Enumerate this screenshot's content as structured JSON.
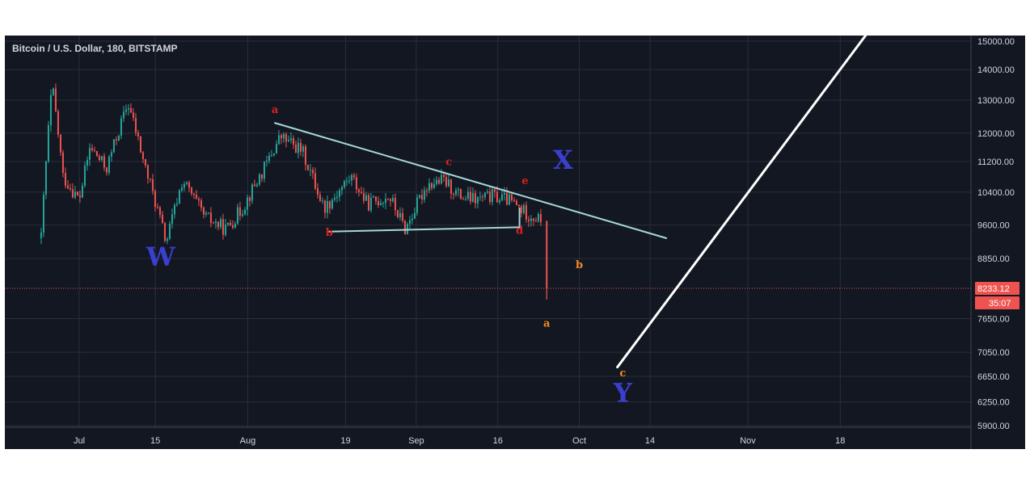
{
  "chart_data": {
    "type": "candlestick",
    "title": "Bitcoin / U.S. Dollar, 180, BITSTAMP",
    "y_ticks": [
      5900,
      6250,
      6650,
      7050,
      7650,
      8233.12,
      8850,
      9600,
      10400,
      11200,
      12000,
      13000,
      14000,
      15000
    ],
    "y_tick_labels": [
      "5900.00",
      "6250.00",
      "6650.00",
      "7050.00",
      "7650.00",
      "8233.12",
      "8850.00",
      "9600.00",
      "10400.00",
      "11200.00",
      "12000.00",
      "13000.00",
      "14000.00",
      "15000.00"
    ],
    "x_ticks": [
      "Jul",
      "15",
      "Aug",
      "19",
      "Sep",
      "16",
      "Oct",
      "14",
      "Nov",
      "18"
    ],
    "last_price": "8233.12",
    "countdown": "35:07",
    "price_path": [
      {
        "date": "2019-06-24",
        "price": 9300
      },
      {
        "date": "2019-06-26",
        "price": 13500
      },
      {
        "date": "2019-06-28",
        "price": 10800
      },
      {
        "date": "2019-07-01",
        "price": 10200
      },
      {
        "date": "2019-07-03",
        "price": 11600
      },
      {
        "date": "2019-07-06",
        "price": 11000
      },
      {
        "date": "2019-07-10",
        "price": 12900
      },
      {
        "date": "2019-07-13",
        "price": 11100
      },
      {
        "date": "2019-07-17",
        "price": 9200
      },
      {
        "date": "2019-07-20",
        "price": 10700
      },
      {
        "date": "2019-07-24",
        "price": 9800
      },
      {
        "date": "2019-07-28",
        "price": 9500
      },
      {
        "date": "2019-07-31",
        "price": 10000
      },
      {
        "date": "2019-08-04",
        "price": 11000
      },
      {
        "date": "2019-08-07",
        "price": 11900
      },
      {
        "date": "2019-08-11",
        "price": 11500
      },
      {
        "date": "2019-08-15",
        "price": 10000
      },
      {
        "date": "2019-08-17",
        "price": 10300
      },
      {
        "date": "2019-08-20",
        "price": 10800
      },
      {
        "date": "2019-08-23",
        "price": 10100
      },
      {
        "date": "2019-08-27",
        "price": 10300
      },
      {
        "date": "2019-08-30",
        "price": 9500
      },
      {
        "date": "2019-09-03",
        "price": 10600
      },
      {
        "date": "2019-09-06",
        "price": 10700
      },
      {
        "date": "2019-09-09",
        "price": 10300
      },
      {
        "date": "2019-09-12",
        "price": 10200
      },
      {
        "date": "2019-09-15",
        "price": 10300
      },
      {
        "date": "2019-09-18",
        "price": 10200
      },
      {
        "date": "2019-09-21",
        "price": 9900
      },
      {
        "date": "2019-09-24",
        "price": 9700
      },
      {
        "date": "2019-09-25",
        "price": 8233.12
      }
    ],
    "trendlines": [
      {
        "from": {
          "date": "2019-08-06",
          "price": 12300
        },
        "to": {
          "date": "2019-10-17",
          "price": 9300
        },
        "color": "#a4d8d8"
      },
      {
        "from": {
          "date": "2019-08-16",
          "price": 9450
        },
        "to": {
          "date": "2019-09-20",
          "price": 9550
        },
        "color": "#a4d8d8"
      },
      {
        "from": {
          "date": "2019-09-20",
          "price": 9550
        },
        "to": {
          "date": "2019-09-20",
          "price": 10000
        },
        "color": "#a4d8d8"
      },
      {
        "from": {
          "date": "2019-10-08",
          "price": 6800
        },
        "to": {
          "date": "2019-11-23",
          "price": 15300
        },
        "color": "#ffffff"
      }
    ],
    "wave_labels": [
      {
        "text": "W",
        "date": "2019-07-16",
        "price": 8700,
        "color": "#3b3fd0",
        "size": "big"
      },
      {
        "text": "X",
        "date": "2019-09-28",
        "price": 11000,
        "color": "#3b3fd0",
        "size": "big"
      },
      {
        "text": "Y",
        "date": "2019-10-09",
        "price": 6250,
        "color": "#3b3fd0",
        "size": "big"
      },
      {
        "text": "a",
        "date": "2019-08-06",
        "price": 12600,
        "color": "#e02020",
        "size": "small"
      },
      {
        "text": "b",
        "date": "2019-08-16",
        "price": 9350,
        "color": "#e02020",
        "size": "small"
      },
      {
        "text": "c",
        "date": "2019-09-07",
        "price": 11100,
        "color": "#e02020",
        "size": "small"
      },
      {
        "text": "d",
        "date": "2019-09-20",
        "price": 9400,
        "color": "#e02020",
        "size": "small"
      },
      {
        "text": "e",
        "date": "2019-09-21",
        "price": 10600,
        "color": "#e02020",
        "size": "small"
      },
      {
        "text": "a",
        "date": "2019-09-25",
        "price": 7500,
        "color": "#f28b20",
        "size": "small"
      },
      {
        "text": "b",
        "date": "2019-10-01",
        "price": 8650,
        "color": "#f28b20",
        "size": "small"
      },
      {
        "text": "c",
        "date": "2019-10-09",
        "price": 6650,
        "color": "#f28b20",
        "size": "small"
      }
    ],
    "colors": {
      "background": "#131722",
      "grid": "#2a2e39",
      "text": "#d1d4dc",
      "up": "#26a69a",
      "down": "#ef5350",
      "price_line": "#ef5350"
    }
  }
}
